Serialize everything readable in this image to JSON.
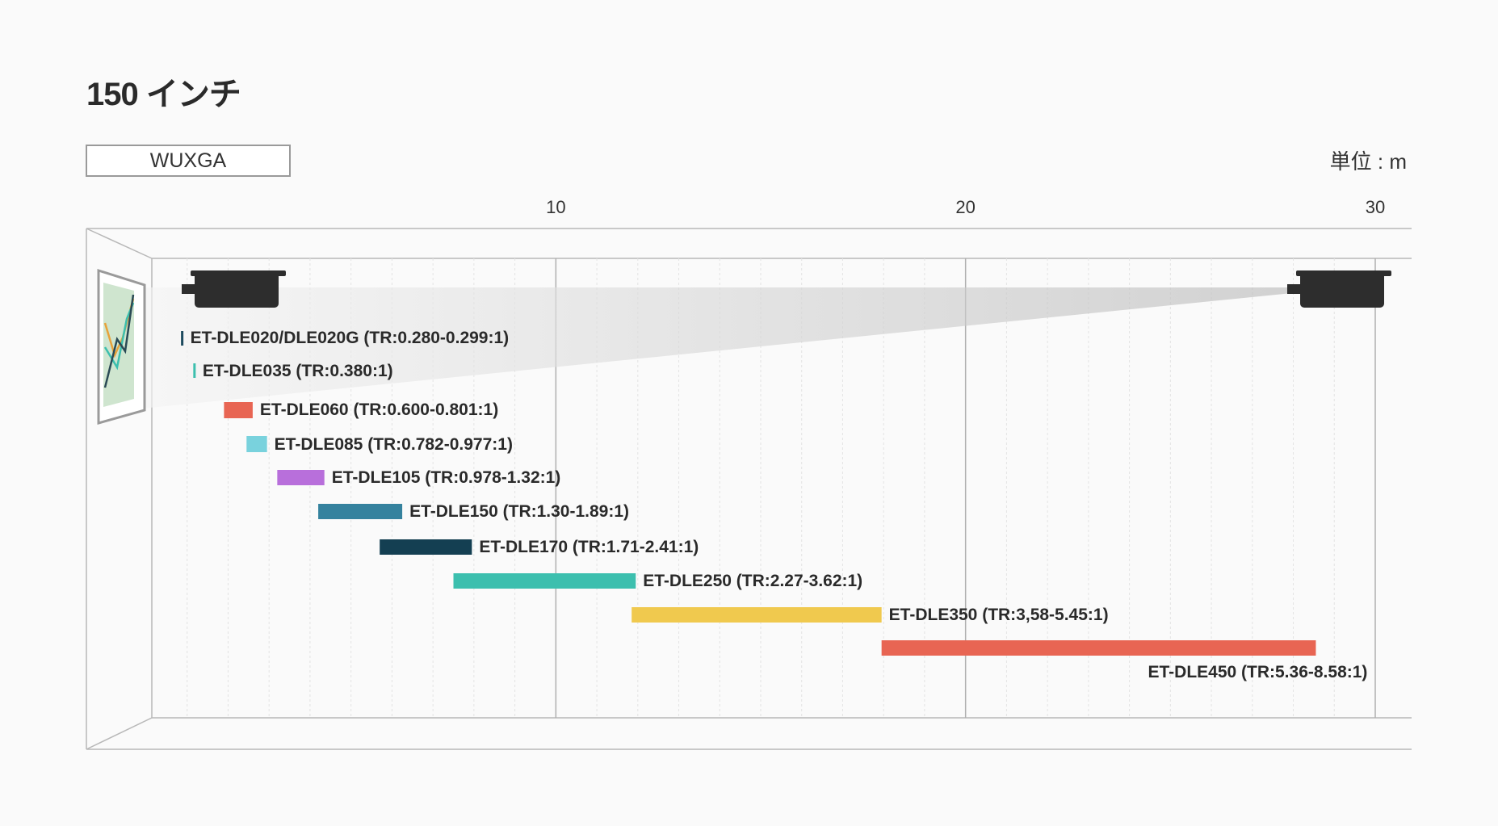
{
  "title": "150 インチ",
  "resolution": "WUXGA",
  "unit": "単位 : m",
  "colors": {
    "dark_navy": "#1d4a5e",
    "teal": "#3cbfae",
    "red": "#e86553",
    "light_cyan": "#79d2dd",
    "purple": "#b86fdb",
    "steel_blue": "#35829e",
    "deep_navy": "#143f52",
    "yellow": "#f0c94e"
  },
  "chart_data": {
    "type": "bar",
    "orientation": "horizontal-range",
    "x_axis": {
      "min": 0,
      "max": 30,
      "ticks": [
        10,
        20,
        30
      ],
      "minor_step": 1,
      "grid": true
    },
    "series": [
      {
        "label": "ET-DLE020/DLE020G (TR:0.280-0.299:1)",
        "start": 0.85,
        "end": 0.9,
        "color": "#1d4a5e"
      },
      {
        "label": "ET-DLE035 (TR:0.380:1)",
        "start": 1.15,
        "end": 1.2,
        "color": "#3cbfae"
      },
      {
        "label": "ET-DLE060 (TR:0.600-0.801:1)",
        "start": 1.9,
        "end": 2.6,
        "color": "#e86553"
      },
      {
        "label": "ET-DLE085 (TR:0.782-0.977:1)",
        "start": 2.45,
        "end": 2.95,
        "color": "#79d2dd"
      },
      {
        "label": "ET-DLE105 (TR:0.978-1.32:1)",
        "start": 3.2,
        "end": 4.35,
        "color": "#b86fdb"
      },
      {
        "label": "ET-DLE150 (TR:1.30-1.89:1)",
        "start": 4.2,
        "end": 6.25,
        "color": "#35829e"
      },
      {
        "label": "ET-DLE170 (TR:1.71-2.41:1)",
        "start": 5.7,
        "end": 7.95,
        "color": "#143f52"
      },
      {
        "label": "ET-DLE250 (TR:2.27-3.62:1)",
        "start": 7.5,
        "end": 11.95,
        "color": "#3cbfae"
      },
      {
        "label": "ET-DLE350 (TR:3,58-5.45:1)",
        "start": 11.85,
        "end": 17.95,
        "color": "#f0c94e"
      },
      {
        "label": "ET-DLE450 (TR:5.36-8.58:1)",
        "start": 17.95,
        "end": 28.55,
        "color": "#e86553"
      }
    ]
  }
}
